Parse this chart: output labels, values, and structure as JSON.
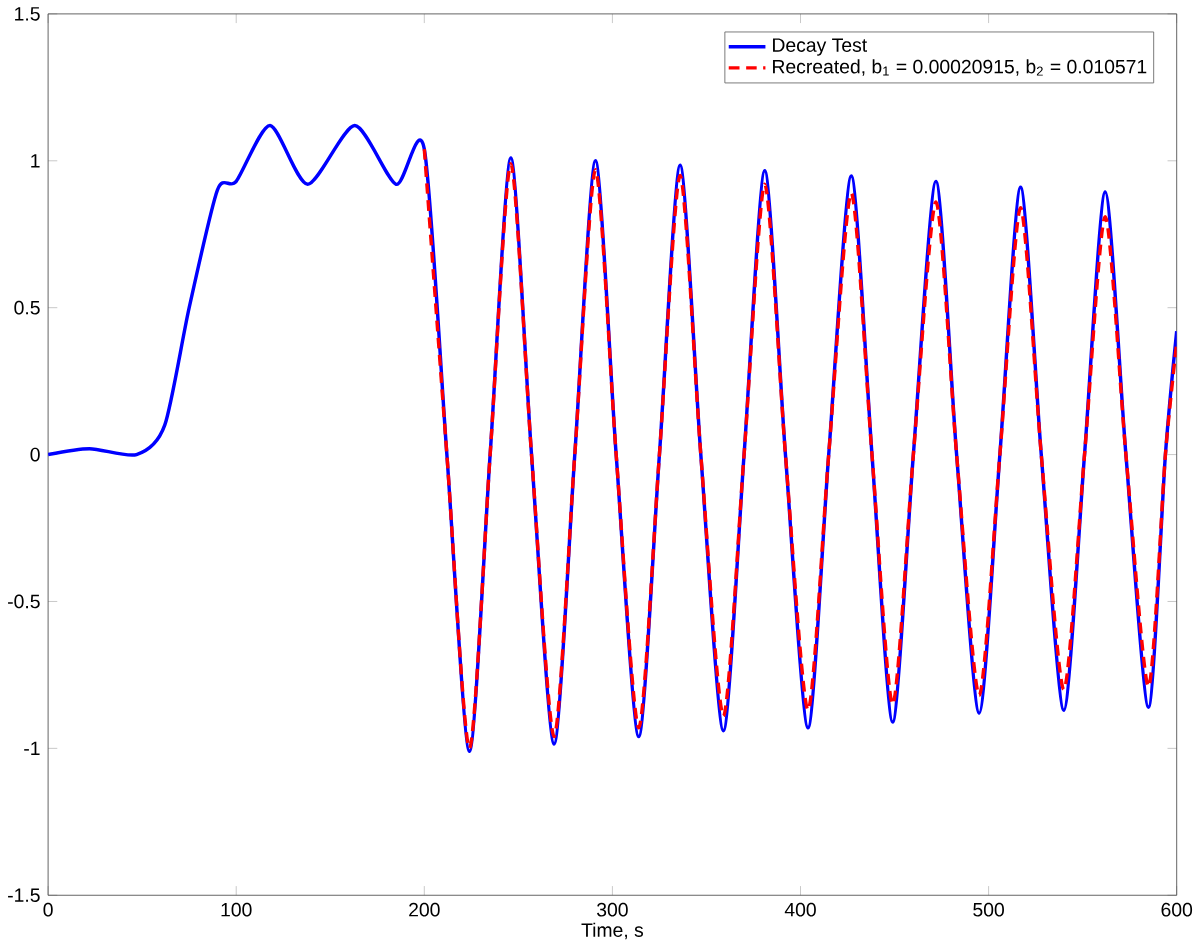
{
  "chart_data": {
    "type": "line",
    "xlabel": "Time, s",
    "xlim": [
      0,
      600
    ],
    "ylim": [
      -1.5,
      1.5
    ],
    "xticks": [
      0,
      100,
      200,
      300,
      400,
      500,
      600
    ],
    "yticks": [
      -1.5,
      -1,
      -0.5,
      0,
      0.5,
      1,
      1.5
    ],
    "grid": false,
    "legend": "top right",
    "marker": "none",
    "series": [
      {
        "name": "Decay Test",
        "color": "#0000ff",
        "line_style": "solid",
        "x": [
          0,
          22,
          47,
          62,
          75,
          90,
          100,
          118,
          138,
          163,
          185,
          200,
          212,
          224,
          235,
          246,
          257,
          269,
          280,
          291,
          302,
          314,
          325,
          336,
          347,
          359,
          370,
          381,
          392,
          404,
          415,
          427,
          438,
          449,
          460,
          472,
          483,
          495,
          506,
          517,
          528,
          540,
          551,
          562,
          573,
          585,
          594,
          600
        ],
        "values": [
          0,
          0.02,
          0.0,
          0.1,
          0.5,
          0.9,
          0.93,
          1.12,
          0.92,
          1.12,
          0.92,
          1.04,
          0,
          -1.01,
          0,
          1.01,
          0,
          -0.985,
          0,
          1.0,
          0,
          -0.96,
          0,
          0.985,
          0,
          -0.94,
          0,
          0.966,
          0,
          -0.93,
          0,
          0.948,
          0,
          -0.91,
          0,
          0.93,
          0,
          -0.88,
          0,
          0.91,
          0,
          -0.87,
          0,
          0.894,
          0,
          -0.86,
          0,
          0.42
        ]
      },
      {
        "name": "Recreated, b$_{1}$ = 0.00020915, b$_{2}$ = 0.010571",
        "color": "#ff0000",
        "line_style": "dashed",
        "x": [
          200,
          212,
          224,
          235,
          246,
          257,
          269,
          280,
          291,
          302,
          314,
          325,
          336,
          347,
          359,
          370,
          381,
          392,
          404,
          415,
          427,
          438,
          449,
          460,
          472,
          483,
          495,
          506,
          517,
          528,
          540,
          551,
          562,
          573,
          585,
          594,
          600
        ],
        "values": [
          1.04,
          0,
          -1.0,
          0,
          0.99,
          0,
          -0.96,
          0,
          0.97,
          0,
          -0.93,
          0,
          0.95,
          0,
          -0.89,
          0,
          0.92,
          0,
          -0.87,
          0,
          0.89,
          0,
          -0.85,
          0,
          0.86,
          0,
          -0.82,
          0,
          0.84,
          0,
          -0.8,
          0,
          0.81,
          0,
          -0.79,
          0,
          0.38
        ]
      }
    ]
  }
}
